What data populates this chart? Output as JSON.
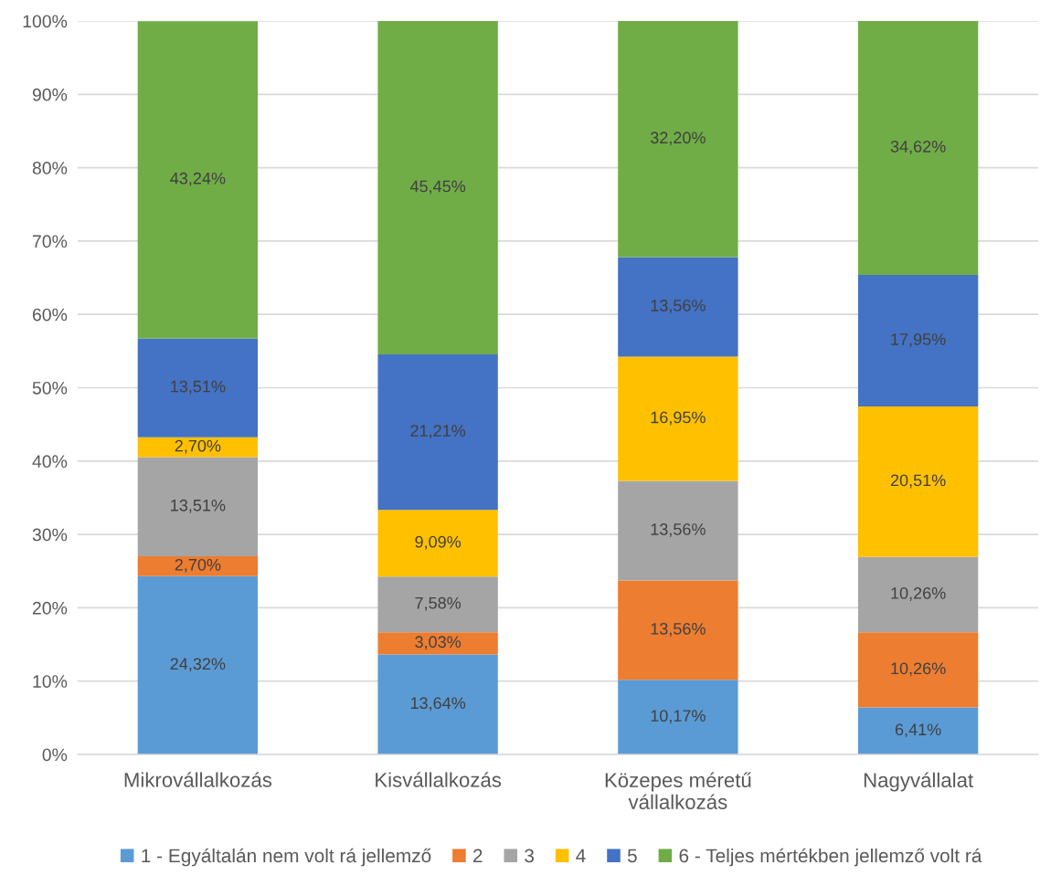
{
  "chart_data": {
    "type": "bar",
    "stacked": true,
    "categories": [
      "Mikrovállalkozás",
      "Kisvállalkozás",
      "Közepes méretű\nvállalkozás",
      "Nagyvállalat"
    ],
    "series": [
      {
        "name": "1 - Egyáltalán nem volt rá jellemző",
        "color": "#5b9bd5",
        "values": [
          24.32,
          13.64,
          10.17,
          6.41
        ],
        "value_labels": [
          "24,32%",
          "13,64%",
          "10,17%",
          "6,41%"
        ]
      },
      {
        "name": "2",
        "color": "#ed7d31",
        "values": [
          2.7,
          3.03,
          13.56,
          10.26
        ],
        "value_labels": [
          "2,70%",
          "3,03%",
          "13,56%",
          "10,26%"
        ]
      },
      {
        "name": "3",
        "color": "#a5a5a5",
        "values": [
          13.51,
          7.58,
          13.56,
          10.26
        ],
        "value_labels": [
          "13,51%",
          "7,58%",
          "13,56%",
          "10,26%"
        ]
      },
      {
        "name": "4",
        "color": "#ffc000",
        "values": [
          2.7,
          9.09,
          16.95,
          20.51
        ],
        "value_labels": [
          "2,70%",
          "9,09%",
          "16,95%",
          "20,51%"
        ]
      },
      {
        "name": "5",
        "color": "#4472c4",
        "values": [
          13.51,
          21.21,
          13.56,
          17.95
        ],
        "value_labels": [
          "13,51%",
          "21,21%",
          "13,56%",
          "17,95%"
        ]
      },
      {
        "name": "6 - Teljes mértékben jellemző volt rá",
        "color": "#70ad47",
        "values": [
          43.24,
          45.45,
          32.2,
          34.62
        ],
        "value_labels": [
          "43,24%",
          "45,45%",
          "32,20%",
          "34,62%"
        ]
      }
    ],
    "ylim": [
      0,
      100
    ],
    "yticks": [
      {
        "value": 0,
        "label": "0%"
      },
      {
        "value": 10,
        "label": "10%"
      },
      {
        "value": 20,
        "label": "20%"
      },
      {
        "value": 30,
        "label": "30%"
      },
      {
        "value": 40,
        "label": "40%"
      },
      {
        "value": 50,
        "label": "50%"
      },
      {
        "value": 60,
        "label": "60%"
      },
      {
        "value": 70,
        "label": "70%"
      },
      {
        "value": 80,
        "label": "80%"
      },
      {
        "value": 90,
        "label": "90%"
      },
      {
        "value": 100,
        "label": "100%"
      }
    ],
    "grid": "y",
    "legend": "bottom"
  }
}
